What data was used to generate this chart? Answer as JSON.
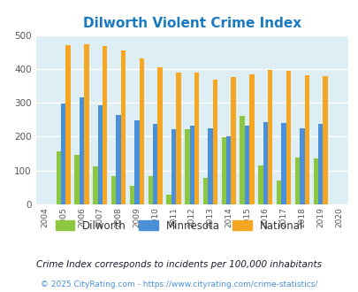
{
  "title": "Dilworth Violent Crime Index",
  "years": [
    2004,
    2005,
    2006,
    2007,
    2008,
    2009,
    2010,
    2011,
    2012,
    2013,
    2014,
    2015,
    2016,
    2017,
    2018,
    2019,
    2020
  ],
  "dilworth": [
    null,
    157,
    146,
    112,
    83,
    55,
    83,
    30,
    222,
    78,
    198,
    262,
    116,
    70,
    138,
    136,
    null
  ],
  "minnesota": [
    null,
    298,
    317,
    292,
    265,
    248,
    237,
    223,
    232,
    224,
    202,
    232,
    244,
    241,
    224,
    238,
    null
  ],
  "national": [
    null,
    469,
    473,
    467,
    455,
    431,
    405,
    388,
    388,
    368,
    376,
    383,
    397,
    394,
    381,
    379,
    null
  ],
  "dilworth_color": "#8dc63f",
  "minnesota_color": "#4a90d9",
  "national_color": "#f5a623",
  "bg_color": "#ddeef4",
  "ylim": [
    0,
    500
  ],
  "yticks": [
    0,
    100,
    200,
    300,
    400,
    500
  ],
  "legend_labels": [
    "Dilworth",
    "Minnesota",
    "National"
  ],
  "footnote1": "Crime Index corresponds to incidents per 100,000 inhabitants",
  "footnote2": "© 2025 CityRating.com - https://www.cityrating.com/crime-statistics/",
  "title_color": "#1a7abf",
  "footnote1_color": "#1a1a2e",
  "footnote2_color": "#4a90d9"
}
